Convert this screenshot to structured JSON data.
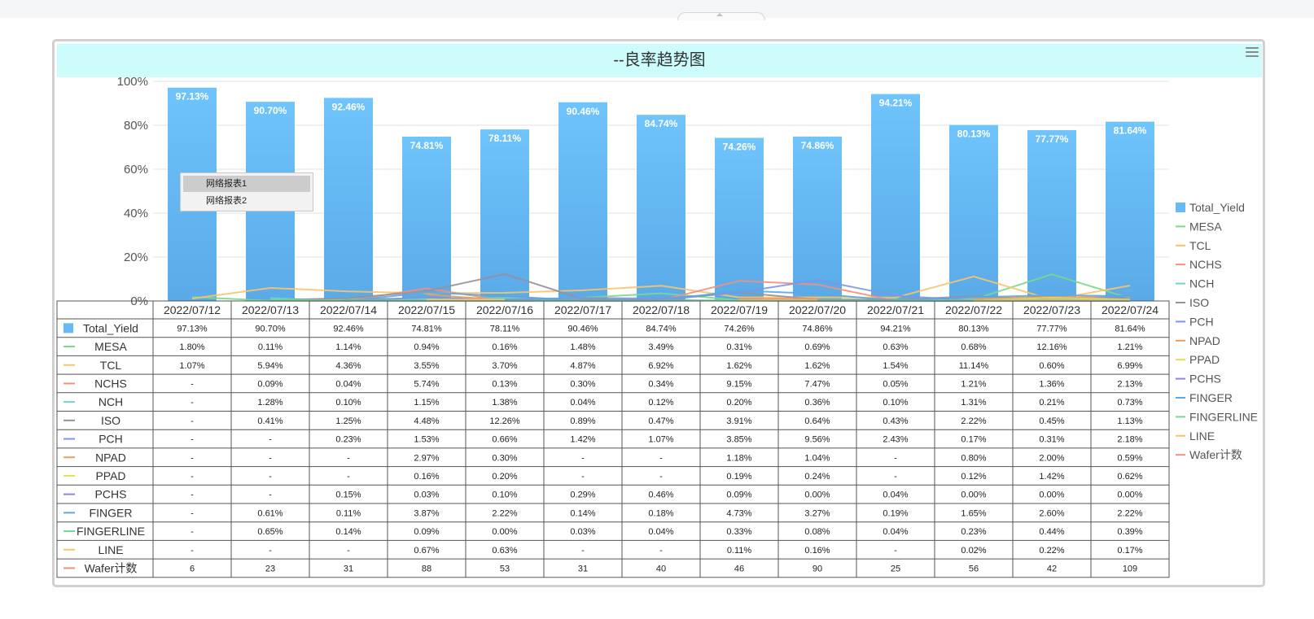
{
  "window": {
    "title": "--良率趋势图"
  },
  "context_menu": {
    "items": [
      "网络报表1",
      "网络报表2"
    ]
  },
  "colors": {
    "Total_Yield": "#66bbf7",
    "MESA": "#7ad88c",
    "TCL": "#f7c46b",
    "NCHS": "#f38f80",
    "NCH": "#6fd3c9",
    "ISO": "#9a8f9c",
    "PCH": "#7a97e3",
    "NPAD": "#f39a59",
    "PPAD": "#e6dc5c",
    "PCHS": "#8f86d8",
    "FINGER": "#5aa9e0",
    "FINGERLINE": "#6fdc8f",
    "LINE": "#f7c46b",
    "Wafer计数": "#f38f80"
  },
  "chart_data": {
    "type": "bar",
    "title": "--良率趋势图",
    "xlabel": "",
    "ylabel": "",
    "ylim": [
      0,
      100
    ],
    "yticks": [
      "0%",
      "20%",
      "40%",
      "60%",
      "80%",
      "100%"
    ],
    "grid": true,
    "legend_position": "right",
    "categories": [
      "2022/07/12",
      "2022/07/13",
      "2022/07/14",
      "2022/07/15",
      "2022/07/16",
      "2022/07/17",
      "2022/07/18",
      "2022/07/19",
      "2022/07/20",
      "2022/07/21",
      "2022/07/22",
      "2022/07/23",
      "2022/07/24"
    ],
    "series": [
      {
        "name": "Total_Yield",
        "type": "bar",
        "values": [
          97.13,
          90.7,
          92.46,
          74.81,
          78.11,
          90.46,
          84.74,
          74.26,
          74.86,
          94.21,
          80.13,
          77.77,
          81.64
        ],
        "labels": [
          "97.13%",
          "90.70%",
          "92.46%",
          "74.81%",
          "78.11%",
          "90.46%",
          "84.74%",
          "74.26%",
          "74.86%",
          "94.21%",
          "80.13%",
          "77.77%",
          "81.64%"
        ]
      },
      {
        "name": "MESA",
        "type": "line",
        "values": [
          1.8,
          0.11,
          1.14,
          0.94,
          0.16,
          1.48,
          3.49,
          0.31,
          0.69,
          0.63,
          0.68,
          12.16,
          1.21
        ],
        "labels": [
          "1.80%",
          "0.11%",
          "1.14%",
          "0.94%",
          "0.16%",
          "1.48%",
          "3.49%",
          "0.31%",
          "0.69%",
          "0.63%",
          "0.68%",
          "12.16%",
          "1.21%"
        ]
      },
      {
        "name": "TCL",
        "type": "line",
        "values": [
          1.07,
          5.94,
          4.36,
          3.55,
          3.7,
          4.87,
          6.92,
          1.62,
          1.62,
          1.54,
          11.14,
          0.6,
          6.99
        ],
        "labels": [
          "1.07%",
          "5.94%",
          "4.36%",
          "3.55%",
          "3.70%",
          "4.87%",
          "6.92%",
          "1.62%",
          "1.62%",
          "1.54%",
          "11.14%",
          "0.60%",
          "6.99%"
        ]
      },
      {
        "name": "NCHS",
        "type": "line",
        "values": [
          null,
          0.09,
          0.04,
          5.74,
          0.13,
          0.3,
          0.34,
          9.15,
          7.47,
          0.05,
          1.21,
          1.36,
          2.13
        ],
        "labels": [
          "-",
          "0.09%",
          "0.04%",
          "5.74%",
          "0.13%",
          "0.30%",
          "0.34%",
          "9.15%",
          "7.47%",
          "0.05%",
          "1.21%",
          "1.36%",
          "2.13%"
        ]
      },
      {
        "name": "NCH",
        "type": "line",
        "values": [
          null,
          1.28,
          0.1,
          1.15,
          1.38,
          0.04,
          0.12,
          0.2,
          0.36,
          0.1,
          1.31,
          0.21,
          0.73
        ],
        "labels": [
          "-",
          "1.28%",
          "0.10%",
          "1.15%",
          "1.38%",
          "0.04%",
          "0.12%",
          "0.20%",
          "0.36%",
          "0.10%",
          "1.31%",
          "0.21%",
          "0.73%"
        ]
      },
      {
        "name": "ISO",
        "type": "line",
        "values": [
          null,
          0.41,
          1.25,
          4.48,
          12.26,
          0.89,
          0.47,
          3.91,
          0.64,
          0.43,
          2.22,
          0.45,
          1.13
        ],
        "labels": [
          "-",
          "0.41%",
          "1.25%",
          "4.48%",
          "12.26%",
          "0.89%",
          "0.47%",
          "3.91%",
          "0.64%",
          "0.43%",
          "2.22%",
          "0.45%",
          "1.13%"
        ]
      },
      {
        "name": "PCH",
        "type": "line",
        "values": [
          null,
          null,
          0.23,
          1.53,
          0.66,
          1.42,
          1.07,
          3.85,
          9.56,
          2.43,
          0.17,
          0.31,
          2.18
        ],
        "labels": [
          "-",
          "-",
          "0.23%",
          "1.53%",
          "0.66%",
          "1.42%",
          "1.07%",
          "3.85%",
          "9.56%",
          "2.43%",
          "0.17%",
          "0.31%",
          "2.18%"
        ]
      },
      {
        "name": "NPAD",
        "type": "line",
        "values": [
          null,
          null,
          null,
          2.97,
          0.3,
          null,
          null,
          1.18,
          1.04,
          null,
          0.8,
          2.0,
          0.59
        ],
        "labels": [
          "-",
          "-",
          "-",
          "2.97%",
          "0.30%",
          "-",
          "-",
          "1.18%",
          "1.04%",
          "-",
          "0.80%",
          "2.00%",
          "0.59%"
        ]
      },
      {
        "name": "PPAD",
        "type": "line",
        "values": [
          null,
          null,
          null,
          0.16,
          0.2,
          null,
          null,
          0.19,
          0.24,
          null,
          0.12,
          1.42,
          0.62
        ],
        "labels": [
          "-",
          "-",
          "-",
          "0.16%",
          "0.20%",
          "-",
          "-",
          "0.19%",
          "0.24%",
          "-",
          "0.12%",
          "1.42%",
          "0.62%"
        ]
      },
      {
        "name": "PCHS",
        "type": "line",
        "values": [
          null,
          null,
          0.15,
          0.03,
          0.1,
          0.29,
          0.46,
          0.09,
          0.0,
          0.04,
          0.0,
          0.0,
          0.0
        ],
        "labels": [
          "-",
          "-",
          "0.15%",
          "0.03%",
          "0.10%",
          "0.29%",
          "0.46%",
          "0.09%",
          "0.00%",
          "0.04%",
          "0.00%",
          "0.00%",
          "0.00%"
        ]
      },
      {
        "name": "FINGER",
        "type": "line",
        "values": [
          null,
          0.61,
          0.11,
          3.87,
          2.22,
          0.14,
          0.18,
          4.73,
          3.27,
          0.19,
          1.65,
          2.6,
          2.22
        ],
        "labels": [
          "-",
          "0.61%",
          "0.11%",
          "3.87%",
          "2.22%",
          "0.14%",
          "0.18%",
          "4.73%",
          "3.27%",
          "0.19%",
          "1.65%",
          "2.60%",
          "2.22%"
        ]
      },
      {
        "name": "FINGERLINE",
        "type": "line",
        "values": [
          null,
          0.65,
          0.14,
          0.09,
          0.0,
          0.03,
          0.04,
          0.33,
          0.08,
          0.04,
          0.23,
          0.44,
          0.39
        ],
        "labels": [
          "-",
          "0.65%",
          "0.14%",
          "0.09%",
          "0.00%",
          "0.03%",
          "0.04%",
          "0.33%",
          "0.08%",
          "0.04%",
          "0.23%",
          "0.44%",
          "0.39%"
        ]
      },
      {
        "name": "LINE",
        "type": "line",
        "values": [
          null,
          null,
          null,
          0.67,
          0.63,
          null,
          null,
          0.11,
          0.16,
          null,
          0.02,
          0.22,
          0.17
        ],
        "labels": [
          "-",
          "-",
          "-",
          "0.67%",
          "0.63%",
          "-",
          "-",
          "0.11%",
          "0.16%",
          "-",
          "0.02%",
          "0.22%",
          "0.17%"
        ]
      },
      {
        "name": "Wafer计数",
        "type": "count",
        "values": [
          6,
          23,
          31,
          88,
          53,
          31,
          40,
          46,
          90,
          25,
          56,
          42,
          109
        ],
        "labels": [
          "6",
          "23",
          "31",
          "88",
          "53",
          "31",
          "40",
          "46",
          "90",
          "25",
          "56",
          "42",
          "109"
        ]
      }
    ]
  }
}
